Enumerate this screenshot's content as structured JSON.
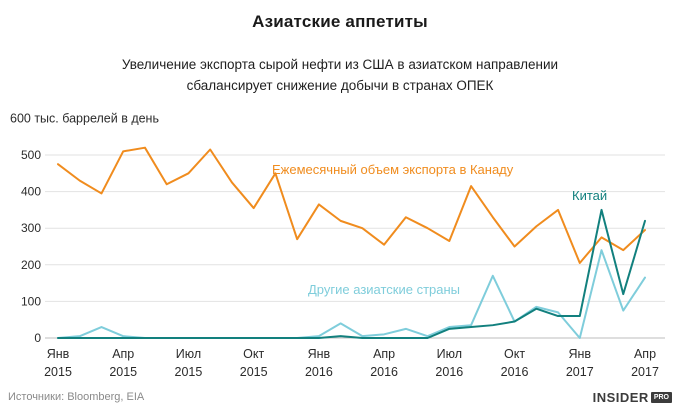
{
  "header": {
    "title": "Азиатские аппетиты",
    "subtitle_line1": "Увеличение экспорта сырой нефти из США в азиатском направлении",
    "subtitle_line2": "сбалансирует снижение добычи в странах ОПЕК"
  },
  "footer": {
    "source": "Источники: Bloomberg, EIA",
    "logo_main": "INSIDER",
    "logo_badge": "PRO"
  },
  "chart_data": {
    "type": "line",
    "title": "Азиатские аппетиты",
    "subtitle": "Увеличение экспорта сырой нефти из США в азиатском направлении сбалансирует снижение добычи в странах ОПЕК",
    "unit_label": "600 тыс. баррелей в день",
    "ylabel": "тыс. баррелей в день",
    "ylim": [
      0,
      600
    ],
    "yticks": [
      0,
      100,
      200,
      300,
      400,
      500
    ],
    "grid": true,
    "legend_position": "inline-annotations",
    "x_count": 28,
    "x_months": "Янв 2015 — Апр 2017, помесячно",
    "x_ticks": [
      {
        "i": 0,
        "month": "Янв",
        "year": "2015"
      },
      {
        "i": 3,
        "month": "Апр",
        "year": "2015"
      },
      {
        "i": 6,
        "month": "Июл",
        "year": "2015"
      },
      {
        "i": 9,
        "month": "Окт",
        "year": "2015"
      },
      {
        "i": 12,
        "month": "Янв",
        "year": "2016"
      },
      {
        "i": 15,
        "month": "Апр",
        "year": "2016"
      },
      {
        "i": 18,
        "month": "Июл",
        "year": "2016"
      },
      {
        "i": 21,
        "month": "Окт",
        "year": "2016"
      },
      {
        "i": 24,
        "month": "Янв",
        "year": "2017"
      },
      {
        "i": 27,
        "month": "Апр",
        "year": "2017"
      }
    ],
    "series": [
      {
        "id": "canada",
        "name": "Ежемесячный объем экспорта в Канаду",
        "color": "#F08C1E",
        "values": [
          475,
          430,
          395,
          510,
          520,
          420,
          450,
          515,
          425,
          355,
          450,
          270,
          365,
          320,
          300,
          255,
          330,
          300,
          265,
          415,
          330,
          250,
          305,
          350,
          205,
          275,
          240,
          295
        ]
      },
      {
        "id": "other-asia",
        "name": "Другие азиатские страны",
        "color": "#7FCDDB",
        "values": [
          0,
          5,
          30,
          5,
          0,
          0,
          0,
          0,
          0,
          0,
          0,
          0,
          5,
          40,
          5,
          10,
          25,
          5,
          30,
          35,
          170,
          45,
          85,
          70,
          0,
          240,
          75,
          165
        ]
      },
      {
        "id": "china",
        "name": "Китай",
        "color": "#12807E",
        "values": [
          0,
          0,
          0,
          0,
          0,
          0,
          0,
          0,
          0,
          0,
          0,
          0,
          0,
          5,
          0,
          0,
          0,
          0,
          25,
          30,
          35,
          45,
          80,
          60,
          60,
          350,
          120,
          320
        ]
      }
    ],
    "annotations": [
      {
        "series": 0,
        "x": 272,
        "y": 70
      },
      {
        "series": 1,
        "x": 308,
        "y": 190
      },
      {
        "series": 2,
        "x": 572,
        "y": 96
      }
    ]
  }
}
